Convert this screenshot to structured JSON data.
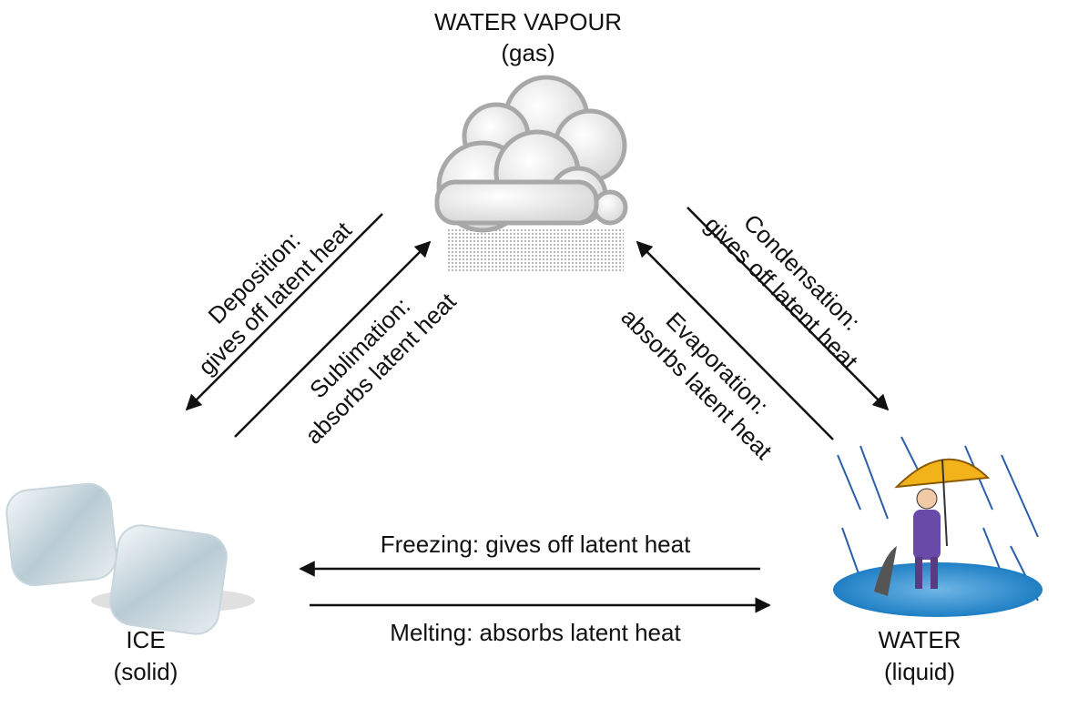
{
  "nodes": [
    {
      "label": "WATER VAPOUR",
      "state": "(gas)"
    },
    {
      "label": "ICE",
      "state": "(solid)"
    },
    {
      "label": "WATER",
      "state": "(liquid)"
    }
  ],
  "transitions": [
    {
      "lines": [
        "Deposition:",
        "gives off latent heat"
      ]
    },
    {
      "lines": [
        "Sublimation:",
        "absorbs latent heat"
      ]
    },
    {
      "lines": [
        "Evaporation:",
        "absorbs latent heat"
      ]
    },
    {
      "lines": [
        "Condensation:",
        "gives off latent heat"
      ]
    },
    {
      "lines": [
        "Freezing: gives off latent heat"
      ]
    },
    {
      "lines": [
        "Melting: absorbs latent heat"
      ]
    }
  ]
}
